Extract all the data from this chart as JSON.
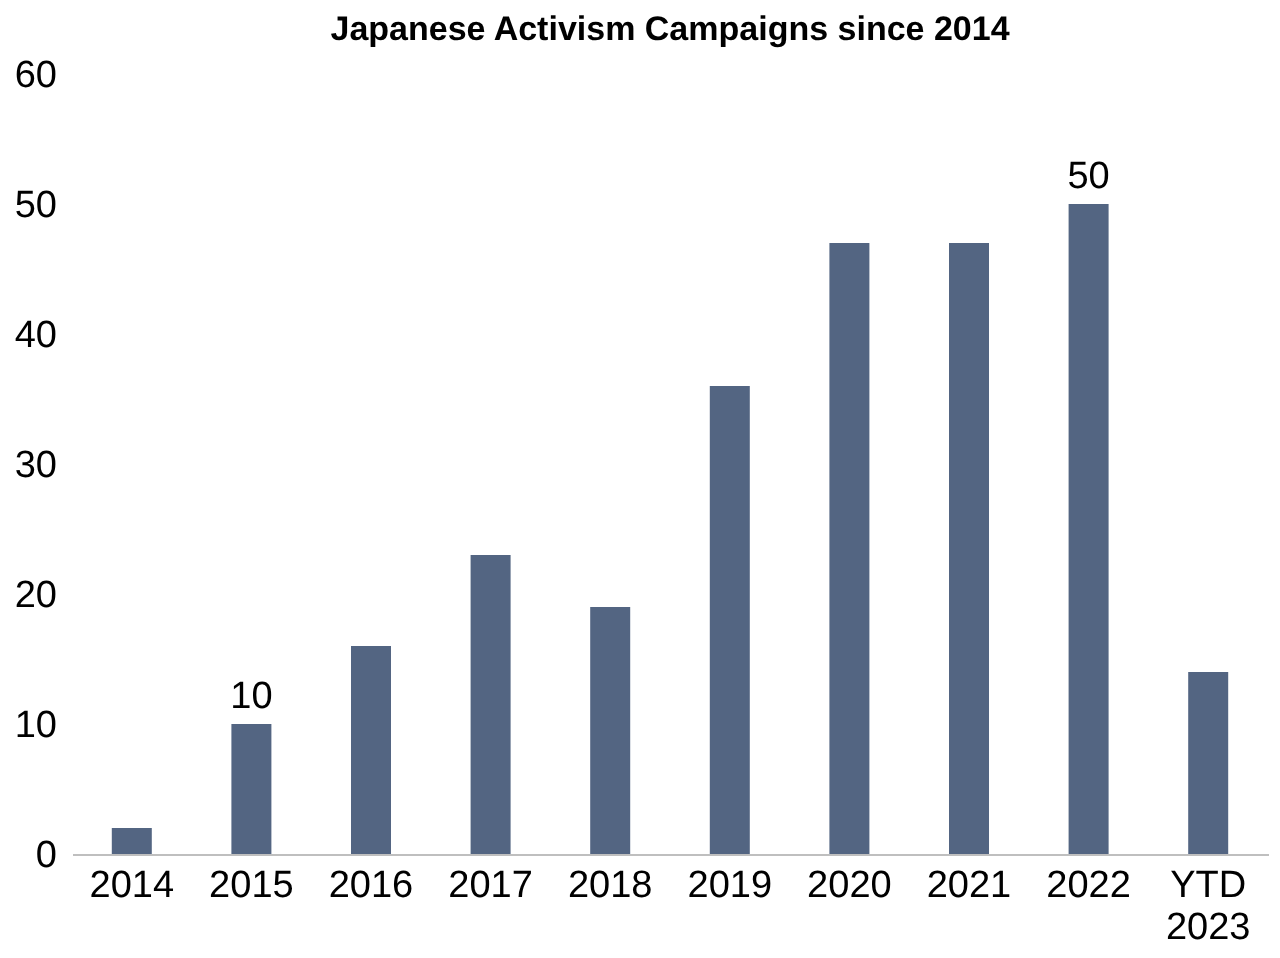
{
  "chart_data": {
    "type": "bar",
    "title": "Japanese Activism Campaigns since 2014",
    "categories": [
      "2014",
      "2015",
      "2016",
      "2017",
      "2018",
      "2019",
      "2020",
      "2021",
      "2022",
      "YTD 2023"
    ],
    "values": [
      2,
      10,
      16,
      23,
      19,
      36,
      47,
      47,
      50,
      14
    ],
    "value_labels": [
      null,
      "10",
      null,
      null,
      null,
      null,
      null,
      null,
      "50",
      null
    ],
    "color": "#536582",
    "ylim": [
      0,
      60
    ],
    "yticks": [
      0,
      10,
      20,
      30,
      40,
      50,
      60
    ],
    "grid": false
  }
}
